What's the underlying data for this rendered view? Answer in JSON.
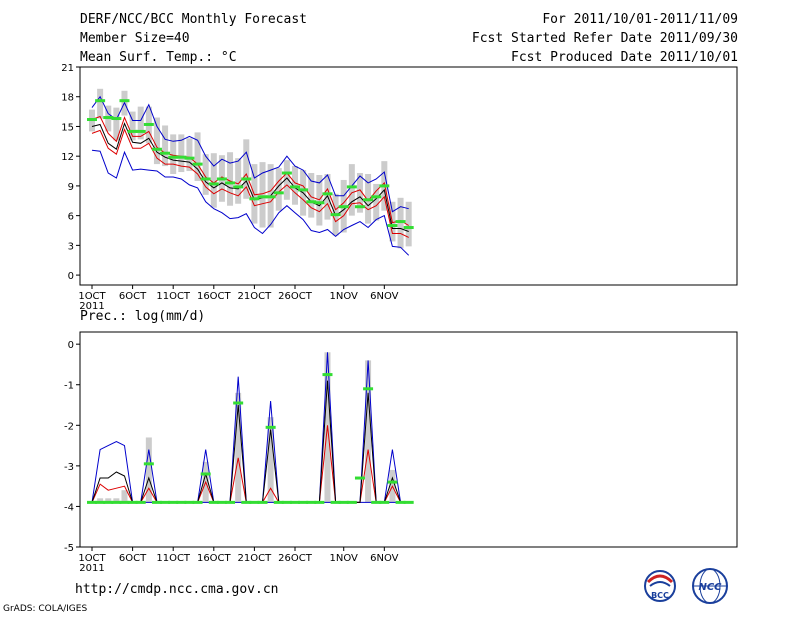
{
  "header": {
    "title": "DERF/NCC/BCC Monthly Forecast",
    "member_size": "Member Size=40",
    "variable": "Mean Surf. Temp.: °C",
    "period": "For 2011/10/01-2011/11/09",
    "start_ref": "Fcst Started Refer Date 2011/09/30",
    "produced": "Fcst Produced Date 2011/10/01"
  },
  "precip_label": "Prec.: log(mm/d)",
  "footer": {
    "url": "http://cmdp.ncc.cma.gov.cn",
    "grads": "GrADS: COLA/IGES"
  },
  "logos": {
    "bcc": "BCC",
    "ncc": "NCC"
  },
  "colors": {
    "max_min": "#0000cc",
    "mean": "#000000",
    "median": "#dd0000",
    "obs": "#33dd33",
    "range_bar": "#cccccc"
  },
  "chart_data": [
    {
      "type": "line",
      "title": "Mean Surf. Temp.: °C",
      "x_unit": "day",
      "x": [
        1,
        2,
        3,
        4,
        5,
        6,
        7,
        8,
        9,
        10,
        11,
        12,
        13,
        14,
        15,
        16,
        17,
        18,
        19,
        20,
        21,
        22,
        23,
        24,
        25,
        26,
        27,
        28,
        29,
        30,
        31,
        32,
        33,
        34,
        35,
        36,
        37,
        38,
        39,
        40
      ],
      "ylim": [
        -1,
        21
      ],
      "yticks": [
        0,
        3,
        6,
        9,
        12,
        15,
        18,
        21
      ],
      "xtick_days": [
        1,
        6,
        11,
        16,
        21,
        26,
        32,
        37
      ],
      "xtick_labels": [
        "1OCT",
        "6OCT",
        "11OCT",
        "16OCT",
        "21OCT",
        "26OCT",
        "1NOV",
        "6NOV"
      ],
      "xtick_year": "2011",
      "series": [
        {
          "name": "max",
          "values": [
            16.9,
            18.0,
            16.3,
            15.7,
            17.4,
            15.6,
            15.6,
            17.2,
            15.0,
            13.7,
            13.5,
            13.6,
            14.0,
            13.6,
            12.0,
            11.0,
            11.7,
            11.3,
            11.5,
            12.4,
            9.8,
            10.3,
            10.6,
            10.9,
            12.0,
            11.0,
            10.6,
            9.5,
            9.3,
            10.1,
            8.0,
            8.0,
            9.0,
            10.0,
            9.3,
            9.7,
            10.4,
            6.4,
            6.9,
            6.7
          ]
        },
        {
          "name": "mean_upper",
          "values": [
            15.7,
            16.0,
            14.3,
            13.5,
            15.9,
            14.0,
            14.0,
            14.5,
            12.9,
            12.3,
            12.1,
            12.0,
            11.9,
            11.2,
            9.9,
            9.3,
            9.9,
            9.5,
            9.2,
            10.2,
            8.1,
            8.2,
            8.5,
            9.5,
            10.3,
            9.3,
            9.0,
            7.9,
            7.6,
            8.7,
            6.6,
            7.3,
            8.3,
            8.6,
            7.5,
            8.5,
            9.3,
            5.3,
            5.5,
            5.0
          ]
        },
        {
          "name": "mean",
          "values": [
            15.0,
            15.2,
            13.3,
            12.7,
            15.3,
            13.4,
            13.3,
            13.8,
            12.4,
            11.9,
            11.6,
            11.5,
            11.4,
            10.7,
            9.4,
            8.8,
            9.3,
            8.8,
            8.7,
            9.5,
            7.6,
            7.8,
            8.0,
            9.0,
            9.8,
            8.8,
            8.3,
            7.4,
            7.0,
            8.0,
            6.0,
            6.6,
            7.4,
            7.9,
            7.0,
            7.7,
            8.6,
            4.7,
            4.7,
            4.4
          ]
        },
        {
          "name": "median",
          "values": [
            14.3,
            14.6,
            12.8,
            12.2,
            14.7,
            12.8,
            12.8,
            13.3,
            11.8,
            11.2,
            11.2,
            11.0,
            10.9,
            10.2,
            8.9,
            8.2,
            8.7,
            8.3,
            8.0,
            8.9,
            7.0,
            7.2,
            7.4,
            8.4,
            9.1,
            8.3,
            7.6,
            6.8,
            6.4,
            7.2,
            5.4,
            6.0,
            7.2,
            7.3,
            6.6,
            7.0,
            7.9,
            4.2,
            4.2,
            3.8
          ]
        },
        {
          "name": "min",
          "values": [
            12.6,
            12.5,
            10.3,
            9.8,
            12.4,
            10.6,
            10.7,
            10.6,
            10.5,
            9.9,
            9.9,
            9.7,
            9.1,
            8.8,
            7.4,
            6.7,
            6.3,
            5.7,
            5.8,
            6.2,
            4.8,
            4.2,
            5.1,
            6.3,
            7.0,
            6.3,
            5.6,
            4.5,
            4.3,
            4.6,
            3.9,
            4.6,
            5.0,
            5.4,
            4.8,
            5.6,
            6.0,
            2.9,
            2.8,
            2.0
          ]
        },
        {
          "name": "observed",
          "values": [
            15.7,
            17.6,
            15.9,
            15.8,
            17.6,
            14.5,
            14.5,
            15.2,
            12.7,
            12.3,
            11.9,
            11.9,
            11.8,
            11.2,
            9.7,
            9.2,
            9.7,
            9.3,
            8.9,
            9.7,
            7.7,
            7.9,
            7.9,
            8.3,
            10.3,
            8.9,
            8.6,
            7.4,
            7.3,
            8.2,
            6.1,
            6.9,
            8.9,
            6.9,
            7.6,
            7.9,
            9.0,
            5.0,
            5.4,
            4.8
          ]
        },
        {
          "name": "range_bar_top",
          "values": [
            16.7,
            18.8,
            17.1,
            16.9,
            18.6,
            16.5,
            17.0,
            17.0,
            15.9,
            15.1,
            14.2,
            14.2,
            13.8,
            14.4,
            12.2,
            12.3,
            12.1,
            12.4,
            11.8,
            13.7,
            11.2,
            11.4,
            11.2,
            10.8,
            11.6,
            11.0,
            10.6,
            10.3,
            10.1,
            10.2,
            8.2,
            9.6,
            11.2,
            10.3,
            10.2,
            9.2,
            11.5,
            7.4,
            7.8,
            7.4
          ]
        },
        {
          "name": "range_bar_bottom",
          "values": [
            14.5,
            15.8,
            14.5,
            13.6,
            16.1,
            13.6,
            13.7,
            13.3,
            11.2,
            11.0,
            10.2,
            10.4,
            10.5,
            9.5,
            8.1,
            6.8,
            7.4,
            7.0,
            7.2,
            7.7,
            5.2,
            4.8,
            4.8,
            6.5,
            7.6,
            7.1,
            6.0,
            5.8,
            5.0,
            5.6,
            4.0,
            4.3,
            6.0,
            6.3,
            5.2,
            5.5,
            6.5,
            3.4,
            2.7,
            2.9
          ]
        }
      ]
    },
    {
      "type": "line",
      "title": "Prec.: log(mm/d)",
      "x_unit": "day",
      "x": [
        1,
        2,
        3,
        4,
        5,
        6,
        7,
        8,
        9,
        10,
        11,
        12,
        13,
        14,
        15,
        16,
        17,
        18,
        19,
        20,
        21,
        22,
        23,
        24,
        25,
        26,
        27,
        28,
        29,
        30,
        31,
        32,
        33,
        34,
        35,
        36,
        37,
        38,
        39,
        40
      ],
      "ylim": [
        -5,
        0.3
      ],
      "yticks": [
        -5,
        -4,
        -3,
        -2,
        -1,
        0
      ],
      "xtick_days": [
        1,
        6,
        11,
        16,
        21,
        26,
        32,
        37
      ],
      "xtick_labels": [
        "1OCT",
        "6OCT",
        "11OCT",
        "16OCT",
        "21OCT",
        "26OCT",
        "1NOV",
        "6NOV"
      ],
      "xtick_year": "2011",
      "series": [
        {
          "name": "max",
          "values": [
            -3.9,
            -2.6,
            -2.5,
            -2.4,
            -2.5,
            -3.9,
            -3.9,
            -2.6,
            -3.9,
            -3.9,
            -3.9,
            -3.9,
            -3.9,
            -3.9,
            -2.6,
            -3.9,
            -3.9,
            -3.9,
            -0.8,
            -3.9,
            -3.9,
            -3.9,
            -1.4,
            -3.9,
            -3.9,
            -3.9,
            -3.9,
            -3.9,
            -3.9,
            -0.2,
            -3.9,
            -3.9,
            -3.9,
            -3.9,
            -0.4,
            -3.9,
            -3.9,
            -2.6,
            -3.9,
            -3.9
          ]
        },
        {
          "name": "mean",
          "values": [
            -3.9,
            -3.3,
            -3.3,
            -3.15,
            -3.25,
            -3.9,
            -3.9,
            -3.3,
            -3.9,
            -3.9,
            -3.9,
            -3.9,
            -3.9,
            -3.9,
            -3.2,
            -3.9,
            -3.9,
            -3.9,
            -1.5,
            -3.9,
            -3.9,
            -3.9,
            -2.1,
            -3.9,
            -3.9,
            -3.9,
            -3.9,
            -3.9,
            -3.9,
            -0.9,
            -3.9,
            -3.9,
            -3.9,
            -3.9,
            -1.2,
            -3.9,
            -3.9,
            -3.3,
            -3.9,
            -3.9
          ]
        },
        {
          "name": "median",
          "values": [
            -3.9,
            -3.45,
            -3.6,
            -3.55,
            -3.5,
            -3.9,
            -3.9,
            -3.55,
            -3.9,
            -3.9,
            -3.9,
            -3.9,
            -3.9,
            -3.9,
            -3.4,
            -3.9,
            -3.9,
            -3.9,
            -2.8,
            -3.9,
            -3.9,
            -3.9,
            -3.55,
            -3.9,
            -3.9,
            -3.9,
            -3.9,
            -3.9,
            -3.9,
            -2.0,
            -3.9,
            -3.9,
            -3.9,
            -3.9,
            -2.6,
            -3.9,
            -3.9,
            -3.5,
            -3.9,
            -3.9
          ]
        },
        {
          "name": "min",
          "values": [
            -3.9,
            -3.9,
            -3.9,
            -3.9,
            -3.9,
            -3.9,
            -3.9,
            -3.9,
            -3.9,
            -3.9,
            -3.9,
            -3.9,
            -3.9,
            -3.9,
            -3.9,
            -3.9,
            -3.9,
            -3.9,
            -3.9,
            -3.9,
            -3.9,
            -3.9,
            -3.9,
            -3.9,
            -3.9,
            -3.9,
            -3.9,
            -3.9,
            -3.9,
            -3.9,
            -3.9,
            -3.9,
            -3.9,
            -3.9,
            -3.9,
            -3.9,
            -3.9,
            -3.9,
            -3.9,
            -3.9
          ]
        },
        {
          "name": "observed",
          "values": [
            -3.9,
            -3.9,
            -3.9,
            -3.9,
            -3.9,
            -3.9,
            -3.9,
            -2.95,
            -3.9,
            -3.9,
            -3.9,
            -3.9,
            -3.9,
            -3.9,
            -3.2,
            -3.9,
            -3.9,
            -3.9,
            -1.45,
            -3.9,
            -3.9,
            -3.9,
            -2.05,
            -3.9,
            -3.9,
            -3.9,
            -3.9,
            -3.9,
            -3.9,
            -0.75,
            -3.9,
            -3.9,
            -3.9,
            -3.3,
            -1.1,
            -3.9,
            -3.9,
            -3.4,
            -3.9,
            -3.9
          ]
        },
        {
          "name": "range_bar_top",
          "values": [
            -3.9,
            -3.8,
            -3.8,
            -3.8,
            -3.6,
            -3.9,
            -3.9,
            -2.3,
            -3.9,
            -3.9,
            -3.9,
            -3.9,
            -3.9,
            -3.9,
            -2.9,
            -3.9,
            -3.9,
            -3.9,
            -1.2,
            -3.9,
            -3.9,
            -3.9,
            -1.8,
            -3.9,
            -3.9,
            -3.9,
            -3.9,
            -3.9,
            -3.9,
            -0.2,
            -3.9,
            -3.9,
            -3.9,
            -3.9,
            -0.4,
            -3.9,
            -3.9,
            -3.1,
            -3.9,
            -3.9
          ]
        },
        {
          "name": "range_bar_bottom",
          "values": [
            -3.9,
            -3.9,
            -3.9,
            -3.9,
            -3.9,
            -3.9,
            -3.9,
            -3.9,
            -3.9,
            -3.9,
            -3.9,
            -3.9,
            -3.9,
            -3.9,
            -3.9,
            -3.9,
            -3.9,
            -3.9,
            -3.9,
            -3.9,
            -3.9,
            -3.9,
            -3.9,
            -3.9,
            -3.9,
            -3.9,
            -3.9,
            -3.9,
            -3.9,
            -3.9,
            -3.9,
            -3.9,
            -3.9,
            -3.9,
            -3.9,
            -3.9,
            -3.9,
            -3.9,
            -3.9,
            -3.9
          ]
        }
      ]
    }
  ]
}
